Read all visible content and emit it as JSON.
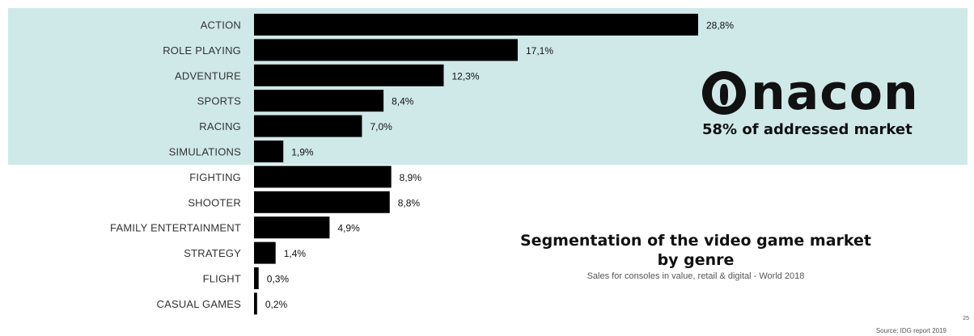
{
  "colors": {
    "band": "#cfe9e8",
    "bar": "#000000"
  },
  "chart_data": {
    "type": "bar",
    "orientation": "horizontal",
    "categories": [
      "ACTION",
      "ROLE PLAYING",
      "ADVENTURE",
      "SPORTS",
      "RACING",
      "SIMULATIONS",
      "FIGHTING",
      "SHOOTER",
      "FAMILY ENTERTAINMENT",
      "STRATEGY",
      "FLIGHT",
      "CASUAL GAMES"
    ],
    "values": [
      28.8,
      17.1,
      12.3,
      8.4,
      7.0,
      1.9,
      8.9,
      8.8,
      4.9,
      1.4,
      0.3,
      0.2
    ],
    "value_labels": [
      "28,8%",
      "17,1%",
      "12,3%",
      "8,4%",
      "7,0%",
      "1,9%",
      "8,9%",
      "8,8%",
      "4,9%",
      "1,4%",
      "0,3%",
      "0,2%"
    ],
    "xlim": [
      0,
      30
    ],
    "grid": false,
    "legend": "none",
    "title": "Segmentation of the video game market by genre",
    "subtitle": "Sales for consoles in value,  retail & digital - World 2018"
  },
  "brand": {
    "logo_text": "nacon",
    "market_share": "58% of addressed market"
  },
  "title_line1": "Segmentation of the video game market",
  "title_line2": "by genre",
  "subtitle": "Sales for consoles in value,  retail & digital - World 2018",
  "source": "Source: IDG report 2019",
  "page_number": "25"
}
